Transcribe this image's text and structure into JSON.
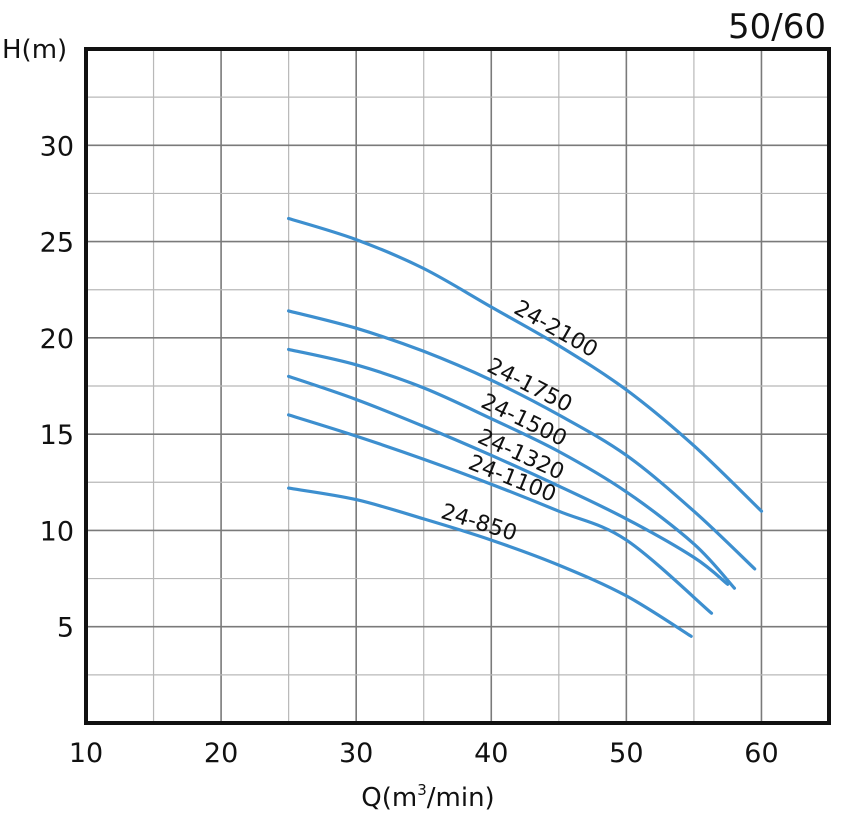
{
  "chart_data": {
    "type": "line",
    "corner_label": "50/60",
    "ylabel": "H(m)",
    "xlabel_prefix": "Q(m",
    "xlabel_sup": "3",
    "xlabel_suffix": "/min)",
    "xlim": [
      10,
      65
    ],
    "ylim": [
      0,
      35
    ],
    "x_ticks": [
      10,
      20,
      30,
      40,
      50,
      60
    ],
    "y_ticks": [
      5,
      10,
      15,
      20,
      25,
      30
    ],
    "grid": true,
    "line_color": "#3d8fcf",
    "series": [
      {
        "name": "24-2100",
        "x": [
          25,
          30,
          35,
          40,
          45,
          50,
          55,
          60
        ],
        "y": [
          26.2,
          25.1,
          23.6,
          21.6,
          19.6,
          17.3,
          14.4,
          11.0
        ]
      },
      {
        "name": "24-1750",
        "x": [
          25,
          30,
          35,
          40,
          45,
          50,
          55,
          59.5
        ],
        "y": [
          21.4,
          20.5,
          19.3,
          17.8,
          16.0,
          13.9,
          11.0,
          8.0
        ]
      },
      {
        "name": "24-1500",
        "x": [
          25,
          30,
          35,
          40,
          45,
          50,
          55,
          58
        ],
        "y": [
          19.4,
          18.6,
          17.4,
          15.8,
          14.1,
          12.0,
          9.3,
          7.0
        ]
      },
      {
        "name": "24-1320",
        "x": [
          25,
          30,
          35,
          40,
          45,
          50,
          55,
          57.5
        ],
        "y": [
          18.0,
          16.8,
          15.4,
          13.9,
          12.3,
          10.6,
          8.6,
          7.2
        ]
      },
      {
        "name": "24-1100",
        "x": [
          25,
          30,
          35,
          40,
          45,
          50,
          56.3
        ],
        "y": [
          16.0,
          14.9,
          13.7,
          12.4,
          11.0,
          9.5,
          5.7
        ]
      },
      {
        "name": "24-850",
        "x": [
          25,
          30,
          35,
          40,
          45,
          50,
          54.8
        ],
        "y": [
          12.2,
          11.6,
          10.6,
          9.5,
          8.2,
          6.6,
          4.5
        ]
      }
    ]
  }
}
